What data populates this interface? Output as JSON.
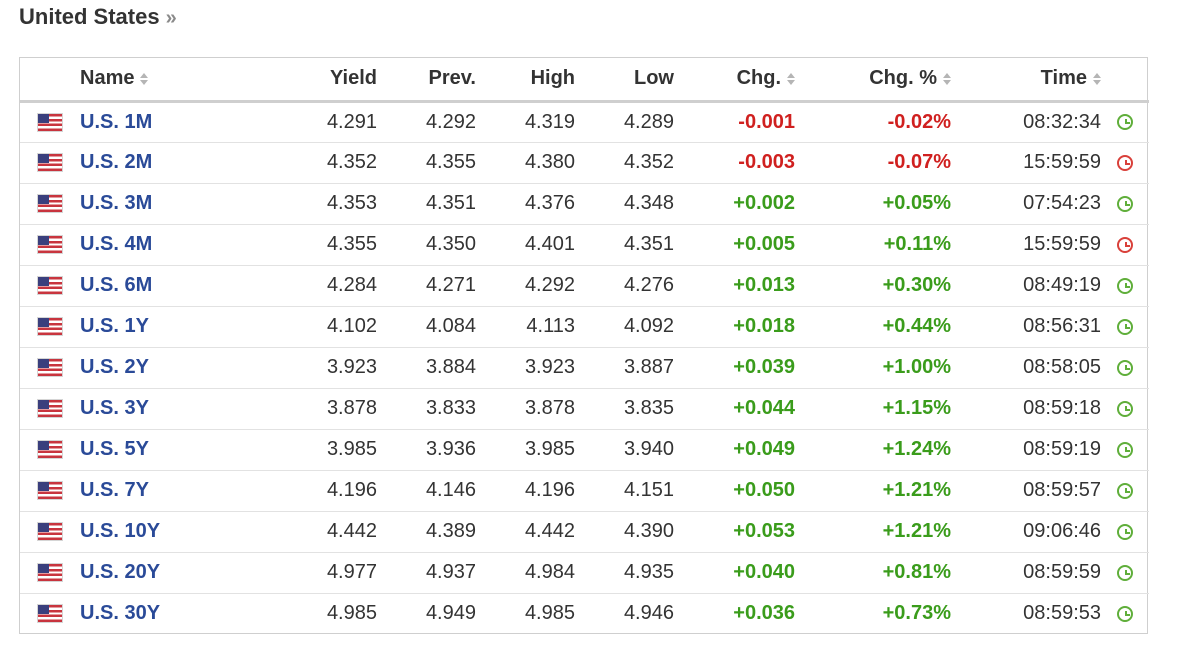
{
  "section": {
    "title": "United States",
    "more": "»"
  },
  "columns": {
    "name": "Name",
    "yield": "Yield",
    "prev": "Prev.",
    "high": "High",
    "low": "Low",
    "chg": "Chg.",
    "chg_pct": "Chg. %",
    "time": "Time"
  },
  "colors": {
    "positive": "#3a9c1b",
    "negative": "#d0201f",
    "link": "#2a4a98",
    "clock_open": "#5fae3a",
    "clock_closed": "#d9403a"
  },
  "rows": [
    {
      "flag": "us-flag-icon",
      "name": "U.S. 1M",
      "yield": "4.291",
      "prev": "4.292",
      "high": "4.319",
      "low": "4.289",
      "chg": "-0.001",
      "chg_pct": "-0.02%",
      "time": "08:32:34",
      "direction": "negative",
      "clock": "open"
    },
    {
      "flag": "us-flag-icon",
      "name": "U.S. 2M",
      "yield": "4.352",
      "prev": "4.355",
      "high": "4.380",
      "low": "4.352",
      "chg": "-0.003",
      "chg_pct": "-0.07%",
      "time": "15:59:59",
      "direction": "negative",
      "clock": "closed"
    },
    {
      "flag": "us-flag-icon",
      "name": "U.S. 3M",
      "yield": "4.353",
      "prev": "4.351",
      "high": "4.376",
      "low": "4.348",
      "chg": "+0.002",
      "chg_pct": "+0.05%",
      "time": "07:54:23",
      "direction": "positive",
      "clock": "open"
    },
    {
      "flag": "us-flag-icon",
      "name": "U.S. 4M",
      "yield": "4.355",
      "prev": "4.350",
      "high": "4.401",
      "low": "4.351",
      "chg": "+0.005",
      "chg_pct": "+0.11%",
      "time": "15:59:59",
      "direction": "positive",
      "clock": "closed"
    },
    {
      "flag": "us-flag-icon",
      "name": "U.S. 6M",
      "yield": "4.284",
      "prev": "4.271",
      "high": "4.292",
      "low": "4.276",
      "chg": "+0.013",
      "chg_pct": "+0.30%",
      "time": "08:49:19",
      "direction": "positive",
      "clock": "open"
    },
    {
      "flag": "us-flag-icon",
      "name": "U.S. 1Y",
      "yield": "4.102",
      "prev": "4.084",
      "high": "4.113",
      "low": "4.092",
      "chg": "+0.018",
      "chg_pct": "+0.44%",
      "time": "08:56:31",
      "direction": "positive",
      "clock": "open"
    },
    {
      "flag": "us-flag-icon",
      "name": "U.S. 2Y",
      "yield": "3.923",
      "prev": "3.884",
      "high": "3.923",
      "low": "3.887",
      "chg": "+0.039",
      "chg_pct": "+1.00%",
      "time": "08:58:05",
      "direction": "positive",
      "clock": "open"
    },
    {
      "flag": "us-flag-icon",
      "name": "U.S. 3Y",
      "yield": "3.878",
      "prev": "3.833",
      "high": "3.878",
      "low": "3.835",
      "chg": "+0.044",
      "chg_pct": "+1.15%",
      "time": "08:59:18",
      "direction": "positive",
      "clock": "open"
    },
    {
      "flag": "us-flag-icon",
      "name": "U.S. 5Y",
      "yield": "3.985",
      "prev": "3.936",
      "high": "3.985",
      "low": "3.940",
      "chg": "+0.049",
      "chg_pct": "+1.24%",
      "time": "08:59:19",
      "direction": "positive",
      "clock": "open"
    },
    {
      "flag": "us-flag-icon",
      "name": "U.S. 7Y",
      "yield": "4.196",
      "prev": "4.146",
      "high": "4.196",
      "low": "4.151",
      "chg": "+0.050",
      "chg_pct": "+1.21%",
      "time": "08:59:57",
      "direction": "positive",
      "clock": "open"
    },
    {
      "flag": "us-flag-icon",
      "name": "U.S. 10Y",
      "yield": "4.442",
      "prev": "4.389",
      "high": "4.442",
      "low": "4.390",
      "chg": "+0.053",
      "chg_pct": "+1.21%",
      "time": "09:06:46",
      "direction": "positive",
      "clock": "open"
    },
    {
      "flag": "us-flag-icon",
      "name": "U.S. 20Y",
      "yield": "4.977",
      "prev": "4.937",
      "high": "4.984",
      "low": "4.935",
      "chg": "+0.040",
      "chg_pct": "+0.81%",
      "time": "08:59:59",
      "direction": "positive",
      "clock": "open"
    },
    {
      "flag": "us-flag-icon",
      "name": "U.S. 30Y",
      "yield": "4.985",
      "prev": "4.949",
      "high": "4.985",
      "low": "4.946",
      "chg": "+0.036",
      "chg_pct": "+0.73%",
      "time": "08:59:53",
      "direction": "positive",
      "clock": "open"
    }
  ]
}
